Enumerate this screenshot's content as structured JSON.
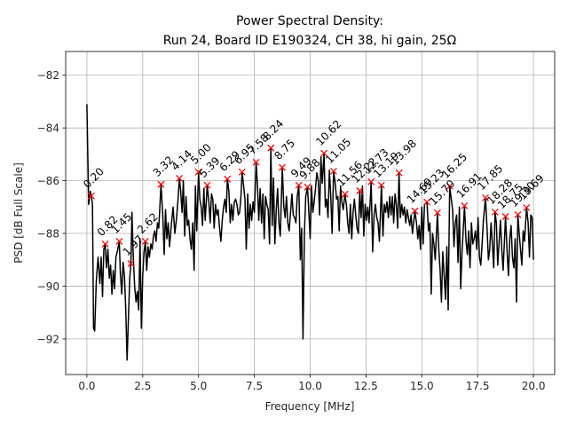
{
  "chart_data": {
    "type": "line",
    "title": "Power Spectral Density:",
    "subtitle": "Run 24, Board ID E190324, CH 38, hi gain, 25Ω",
    "xlabel": "Frequency [MHz]",
    "ylabel": "PSD [dB Full Scale]",
    "xlim": [
      -0.95,
      20.95
    ],
    "ylim": [
      -93.35,
      -81.1
    ],
    "grid": true,
    "xticks": [
      0.0,
      2.5,
      5.0,
      7.5,
      10.0,
      12.5,
      15.0,
      17.5,
      20.0
    ],
    "xtick_labels": [
      "0.0",
      "2.5",
      "5.0",
      "7.5",
      "10.0",
      "12.5",
      "15.0",
      "17.5",
      "20.0"
    ],
    "yticks": [
      -82,
      -84,
      -86,
      -88,
      -90,
      -92
    ],
    "ytick_labels": [
      "−82",
      "−84",
      "−86",
      "−88",
      "−90",
      "−92"
    ],
    "series": [
      {
        "name": "PSD",
        "color": "#000000",
        "x": [
          0.0,
          0.08,
          0.16,
          0.2,
          0.25,
          0.3,
          0.35,
          0.42,
          0.5,
          0.58,
          0.64,
          0.7,
          0.76,
          0.82,
          0.88,
          0.94,
          1.0,
          1.06,
          1.12,
          1.18,
          1.24,
          1.3,
          1.36,
          1.45,
          1.5,
          1.56,
          1.62,
          1.68,
          1.74,
          1.8,
          1.86,
          1.92,
          1.97,
          2.02,
          2.08,
          2.14,
          2.2,
          2.26,
          2.32,
          2.38,
          2.44,
          2.5,
          2.56,
          2.62,
          2.68,
          2.74,
          2.8,
          2.86,
          2.92,
          2.98,
          3.04,
          3.1,
          3.16,
          3.22,
          3.32,
          3.4,
          3.46,
          3.52,
          3.58,
          3.64,
          3.7,
          3.78,
          3.86,
          3.94,
          4.02,
          4.08,
          4.14,
          4.2,
          4.26,
          4.32,
          4.38,
          4.44,
          4.5,
          4.56,
          4.62,
          4.68,
          4.74,
          4.8,
          4.86,
          4.92,
          5.0,
          5.06,
          5.12,
          5.18,
          5.24,
          5.3,
          5.39,
          5.46,
          5.52,
          5.58,
          5.64,
          5.7,
          5.76,
          5.82,
          5.88,
          5.94,
          6.0,
          6.06,
          6.12,
          6.18,
          6.24,
          6.29,
          6.36,
          6.42,
          6.48,
          6.54,
          6.6,
          6.66,
          6.72,
          6.78,
          6.84,
          6.9,
          6.95,
          7.02,
          7.08,
          7.14,
          7.2,
          7.26,
          7.32,
          7.38,
          7.44,
          7.5,
          7.58,
          7.64,
          7.7,
          7.76,
          7.82,
          7.88,
          7.94,
          8.0,
          8.06,
          8.12,
          8.18,
          8.24,
          8.3,
          8.36,
          8.42,
          8.48,
          8.54,
          8.6,
          8.66,
          8.75,
          8.82,
          8.88,
          8.94,
          9.0,
          9.06,
          9.12,
          9.18,
          9.24,
          9.3,
          9.36,
          9.42,
          9.49,
          9.56,
          9.62,
          9.68,
          9.74,
          9.8,
          9.88,
          9.94,
          10.0,
          10.06,
          10.12,
          10.18,
          10.24,
          10.3,
          10.36,
          10.42,
          10.48,
          10.54,
          10.62,
          10.68,
          10.74,
          10.8,
          10.86,
          10.92,
          10.98,
          11.05,
          11.12,
          11.18,
          11.24,
          11.3,
          11.36,
          11.42,
          11.48,
          11.56,
          11.62,
          11.68,
          11.74,
          11.8,
          11.86,
          11.92,
          11.98,
          12.04,
          12.1,
          12.16,
          12.22,
          12.28,
          12.34,
          12.4,
          12.46,
          12.52,
          12.58,
          12.64,
          12.73,
          12.8,
          12.86,
          12.92,
          12.98,
          13.04,
          13.1,
          13.19,
          13.26,
          13.32,
          13.38,
          13.44,
          13.5,
          13.56,
          13.62,
          13.68,
          13.74,
          13.8,
          13.86,
          13.92,
          13.98,
          14.04,
          14.1,
          14.16,
          14.22,
          14.28,
          14.34,
          14.4,
          14.46,
          14.52,
          14.58,
          14.69,
          14.76,
          14.82,
          14.88,
          14.94,
          15.0,
          15.06,
          15.12,
          15.23,
          15.3,
          15.36,
          15.42,
          15.48,
          15.54,
          15.6,
          15.7,
          15.76,
          15.82,
          15.88,
          15.94,
          16.0,
          16.06,
          16.12,
          16.18,
          16.25,
          16.32,
          16.38,
          16.44,
          16.5,
          16.56,
          16.62,
          16.68,
          16.74,
          16.8,
          16.91,
          16.98,
          17.04,
          17.1,
          17.16,
          17.22,
          17.28,
          17.34,
          17.4,
          17.46,
          17.52,
          17.58,
          17.64,
          17.7,
          17.76,
          17.85,
          17.92,
          17.98,
          18.04,
          18.1,
          18.16,
          18.22,
          18.28,
          18.34,
          18.4,
          18.46,
          18.52,
          18.58,
          18.64,
          18.75,
          18.82,
          18.88,
          18.94,
          19.0,
          19.06,
          19.12,
          19.18,
          19.24,
          19.3,
          19.36,
          19.42,
          19.48,
          19.54,
          19.6,
          19.69,
          19.76,
          19.82,
          19.88,
          19.94,
          20.0
        ],
        "y": [
          -83.1,
          -86.9,
          -86.4,
          -86.58,
          -86.9,
          -91.6,
          -91.7,
          -89.8,
          -88.9,
          -89.9,
          -88.9,
          -90.4,
          -88.6,
          -88.4,
          -89.3,
          -88.6,
          -89.7,
          -89.2,
          -90.3,
          -89.4,
          -90.1,
          -88.9,
          -88.7,
          -88.3,
          -89.5,
          -90.3,
          -89.1,
          -89.6,
          -90.9,
          -92.8,
          -91.2,
          -89.7,
          -89.14,
          -87.2,
          -88.9,
          -90.0,
          -90.6,
          -90.2,
          -90.9,
          -88.2,
          -91.6,
          -89.6,
          -88.7,
          -88.3,
          -89.4,
          -88.5,
          -88.9,
          -88.4,
          -88.6,
          -88.1,
          -87.9,
          -88.3,
          -87.6,
          -87.8,
          -86.14,
          -87.3,
          -88.8,
          -87.1,
          -88.2,
          -87.6,
          -88.5,
          -87.7,
          -87.0,
          -88.0,
          -87.4,
          -86.7,
          -85.91,
          -86.4,
          -87.2,
          -86.0,
          -88.1,
          -86.6,
          -87.7,
          -87.5,
          -88.2,
          -88.6,
          -87.6,
          -89.4,
          -86.2,
          -87.9,
          -85.67,
          -86.7,
          -87.0,
          -87.7,
          -86.3,
          -87.5,
          -86.17,
          -86.8,
          -87.6,
          -86.5,
          -86.7,
          -87.8,
          -86.9,
          -87.3,
          -87.1,
          -87.8,
          -88.3,
          -87.5,
          -87.0,
          -86.7,
          -87.2,
          -85.94,
          -86.4,
          -87.6,
          -86.9,
          -87.5,
          -86.8,
          -86.7,
          -86.9,
          -87.3,
          -87.2,
          -86.6,
          -85.67,
          -86.2,
          -86.7,
          -88.6,
          -86.5,
          -87.8,
          -86.9,
          -87.5,
          -86.8,
          -87.2,
          -85.3,
          -86.2,
          -87.5,
          -86.3,
          -87.6,
          -86.5,
          -88.2,
          -86.6,
          -86.9,
          -87.1,
          -88.4,
          -84.76,
          -87.7,
          -85.9,
          -88.4,
          -87.1,
          -86.3,
          -87.6,
          -88.1,
          -85.5,
          -87.0,
          -87.4,
          -86.6,
          -87.6,
          -87.9,
          -87.2,
          -86.5,
          -87.3,
          -87.4,
          -87.6,
          -86.6,
          -86.17,
          -89.0,
          -87.8,
          -92.0,
          -88.0,
          -86.6,
          -86.24,
          -87.2,
          -88.2,
          -86.2,
          -87.2,
          -86.8,
          -86.3,
          -85.7,
          -86.0,
          -87.3,
          -85.1,
          -86.1,
          -84.96,
          -87.0,
          -86.7,
          -87.4,
          -85.6,
          -86.5,
          -88.0,
          -85.64,
          -86.1,
          -86.7,
          -86.6,
          -87.9,
          -86.2,
          -86.8,
          -87.1,
          -86.51,
          -86.9,
          -87.6,
          -88.0,
          -86.9,
          -88.2,
          -87.2,
          -86.7,
          -87.3,
          -87.8,
          -88.0,
          -86.38,
          -87.4,
          -86.2,
          -88.1,
          -86.9,
          -87.5,
          -87.0,
          -87.6,
          -86.04,
          -88.7,
          -87.3,
          -86.9,
          -87.4,
          -87.6,
          -88.3,
          -86.17,
          -88.1,
          -86.9,
          -87.2,
          -86.8,
          -87.4,
          -86.6,
          -87.3,
          -86.6,
          -87.6,
          -86.5,
          -86.9,
          -87.8,
          -85.7,
          -87.4,
          -86.9,
          -87.3,
          -87.0,
          -87.6,
          -87.1,
          -87.4,
          -87.7,
          -87.3,
          -88.0,
          -87.15,
          -87.6,
          -88.2,
          -87.7,
          -88.6,
          -87.0,
          -88.4,
          -86.9,
          -86.81,
          -87.9,
          -87.6,
          -90.3,
          -88.0,
          -88.4,
          -89.0,
          -87.22,
          -88.6,
          -89.4,
          -90.6,
          -88.7,
          -89.6,
          -90.5,
          -88.5,
          -90.9,
          -86.21,
          -86.7,
          -87.1,
          -88.5,
          -87.6,
          -87.3,
          -89.1,
          -87.0,
          -90.1,
          -88.7,
          -86.95,
          -88.3,
          -88.8,
          -87.9,
          -89.3,
          -87.6,
          -88.4,
          -88.2,
          -87.9,
          -88.6,
          -87.4,
          -88.9,
          -89.2,
          -88.4,
          -87.5,
          -86.65,
          -87.8,
          -89.0,
          -88.6,
          -87.6,
          -88.4,
          -89.3,
          -87.19,
          -87.6,
          -89.2,
          -88.3,
          -87.5,
          -88.6,
          -89.4,
          -87.36,
          -88.7,
          -89.6,
          -88.2,
          -87.7,
          -88.9,
          -89.3,
          -88.2,
          -90.6,
          -87.29,
          -88.0,
          -88.6,
          -89.2,
          -87.9,
          -88.3,
          -87.02,
          -87.6,
          -88.9,
          -87.3,
          -87.4,
          -89.0
        ]
      }
    ],
    "markers": {
      "color": "#ff0000",
      "symbol": "x",
      "points": [
        {
          "x": 0.2,
          "y": -86.58,
          "label": "0.20"
        },
        {
          "x": 0.82,
          "y": -88.4,
          "label": "0.82"
        },
        {
          "x": 1.45,
          "y": -88.3,
          "label": "1.45"
        },
        {
          "x": 1.97,
          "y": -89.14,
          "label": "1.97"
        },
        {
          "x": 2.62,
          "y": -88.3,
          "label": "2.62"
        },
        {
          "x": 3.32,
          "y": -86.14,
          "label": "3.32"
        },
        {
          "x": 4.14,
          "y": -85.91,
          "label": "4.14"
        },
        {
          "x": 5.0,
          "y": -85.67,
          "label": "5.00"
        },
        {
          "x": 5.39,
          "y": -86.17,
          "label": "5.39"
        },
        {
          "x": 6.29,
          "y": -85.94,
          "label": "6.29"
        },
        {
          "x": 6.95,
          "y": -85.67,
          "label": "6.95"
        },
        {
          "x": 7.58,
          "y": -85.3,
          "label": "7.58"
        },
        {
          "x": 8.24,
          "y": -84.76,
          "label": "8.24"
        },
        {
          "x": 8.75,
          "y": -85.5,
          "label": "8.75"
        },
        {
          "x": 9.49,
          "y": -86.17,
          "label": "9.49"
        },
        {
          "x": 9.88,
          "y": -86.24,
          "label": "9.88"
        },
        {
          "x": 10.62,
          "y": -84.96,
          "label": "10.62"
        },
        {
          "x": 11.05,
          "y": -85.64,
          "label": "11.05"
        },
        {
          "x": 11.56,
          "y": -86.51,
          "label": "11.56"
        },
        {
          "x": 12.22,
          "y": -86.38,
          "label": "12.22"
        },
        {
          "x": 12.73,
          "y": -86.04,
          "label": "12.73"
        },
        {
          "x": 13.19,
          "y": -86.17,
          "label": "13.19"
        },
        {
          "x": 13.98,
          "y": -85.7,
          "label": "13.98"
        },
        {
          "x": 14.69,
          "y": -87.15,
          "label": "14.69"
        },
        {
          "x": 15.23,
          "y": -86.81,
          "label": "15.23"
        },
        {
          "x": 15.7,
          "y": -87.22,
          "label": "15.70"
        },
        {
          "x": 16.25,
          "y": -86.21,
          "label": "16.25"
        },
        {
          "x": 16.91,
          "y": -86.95,
          "label": "16.91"
        },
        {
          "x": 17.85,
          "y": -86.65,
          "label": "17.85"
        },
        {
          "x": 18.28,
          "y": -87.19,
          "label": "18.28"
        },
        {
          "x": 18.75,
          "y": -87.36,
          "label": "18.75"
        },
        {
          "x": 19.3,
          "y": -87.29,
          "label": "19.30"
        },
        {
          "x": 19.69,
          "y": -87.02,
          "label": "19.69"
        }
      ]
    }
  }
}
